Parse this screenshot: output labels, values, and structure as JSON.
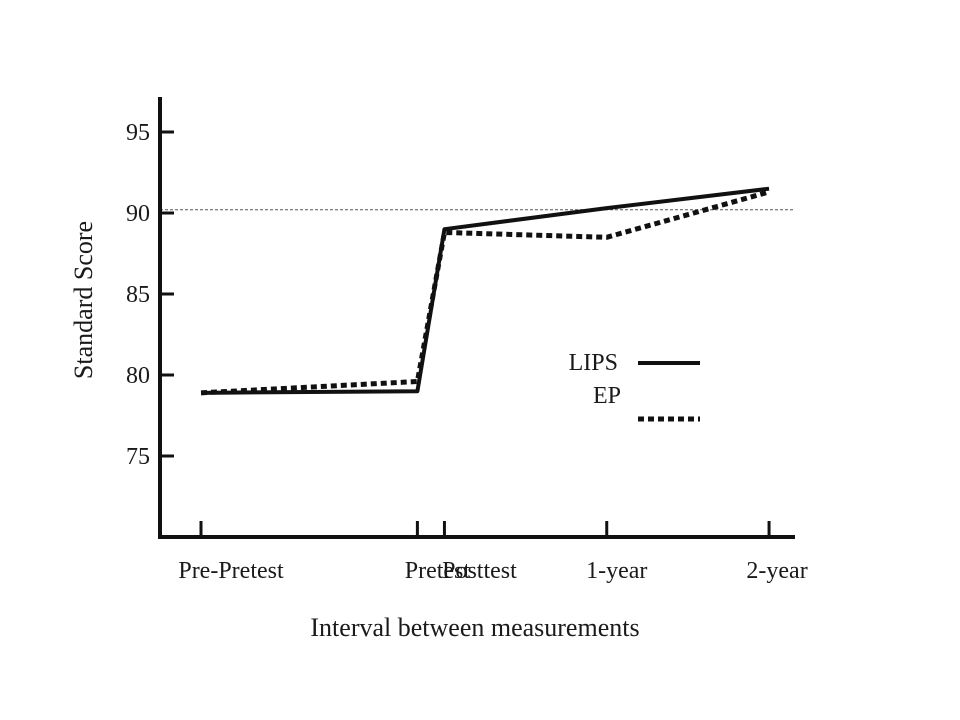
{
  "chart_data": {
    "type": "line",
    "title": "",
    "xlabel": "Interval between measurements",
    "ylabel": "Standard Score",
    "categories": [
      "Pre-Pretest",
      "Pretest",
      "Posttest",
      "1-year",
      "2-year"
    ],
    "x_positions_months": [
      0,
      8,
      9,
      15,
      21
    ],
    "ylim": [
      70,
      97
    ],
    "y_ticks": [
      75,
      80,
      85,
      90,
      95
    ],
    "reference_line": 90.2,
    "grid": false,
    "legend_position": "right-middle",
    "series": [
      {
        "name": "LIPS",
        "style": "solid",
        "values": [
          78.9,
          79.0,
          89.0,
          90.3,
          91.5
        ]
      },
      {
        "name": "EP",
        "style": "dotted",
        "values": [
          78.9,
          79.6,
          88.8,
          88.5,
          91.3
        ]
      }
    ],
    "colors": {
      "line": "#111111",
      "reference": "#555555"
    }
  }
}
